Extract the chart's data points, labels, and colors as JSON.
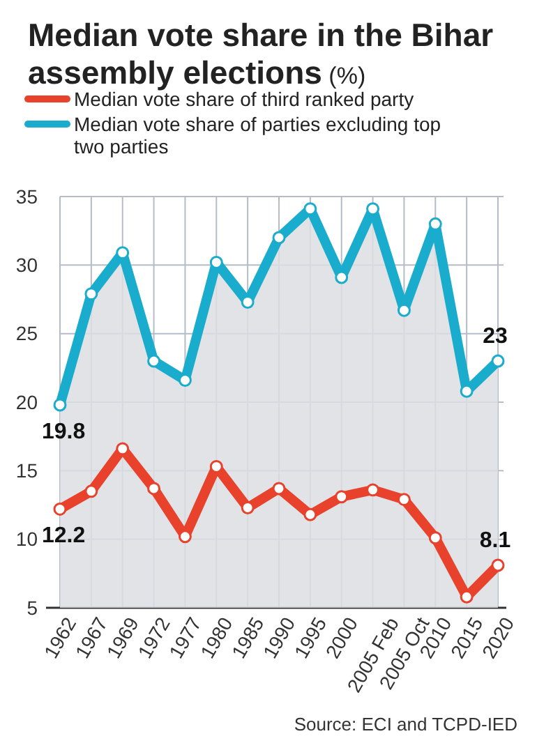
{
  "chart_data": {
    "type": "line",
    "title": "Median vote share in the Bihar assembly elections",
    "subtitle": "(%)",
    "categories": [
      "1962",
      "1967",
      "1969",
      "1972",
      "1977",
      "1980",
      "1985",
      "1990",
      "1995",
      "2000",
      "2005 Feb",
      "2005 Oct",
      "2010",
      "2015",
      "2020"
    ],
    "series": [
      {
        "name": "Median vote share of third ranked party",
        "color": "#e8412c",
        "values": [
          12.2,
          13.5,
          16.6,
          13.7,
          10.2,
          15.3,
          12.3,
          13.7,
          11.8,
          13.1,
          13.6,
          12.9,
          10.1,
          5.8,
          8.1
        ],
        "value_labels": [
          "12.2",
          null,
          null,
          null,
          null,
          null,
          null,
          null,
          null,
          null,
          null,
          null,
          null,
          null,
          "8.1"
        ]
      },
      {
        "name": "Median vote share of parties excluding top two parties",
        "type": "area",
        "color": "#1aaccc",
        "values": [
          19.8,
          27.9,
          30.9,
          23.0,
          21.6,
          30.2,
          27.3,
          32.0,
          34.1,
          29.1,
          34.1,
          26.7,
          33.0,
          20.8,
          23
        ],
        "value_labels": [
          "19.8",
          null,
          null,
          null,
          null,
          null,
          null,
          null,
          null,
          null,
          null,
          null,
          null,
          null,
          "23"
        ]
      }
    ],
    "ylim": [
      5,
      35
    ],
    "yticks": [
      5,
      10,
      15,
      20,
      25,
      30,
      35
    ],
    "grid": true,
    "legend": "top",
    "marker": "circle",
    "line_style": "solid",
    "annotations": [
      "Source: ECI and TCPD-IED"
    ]
  }
}
